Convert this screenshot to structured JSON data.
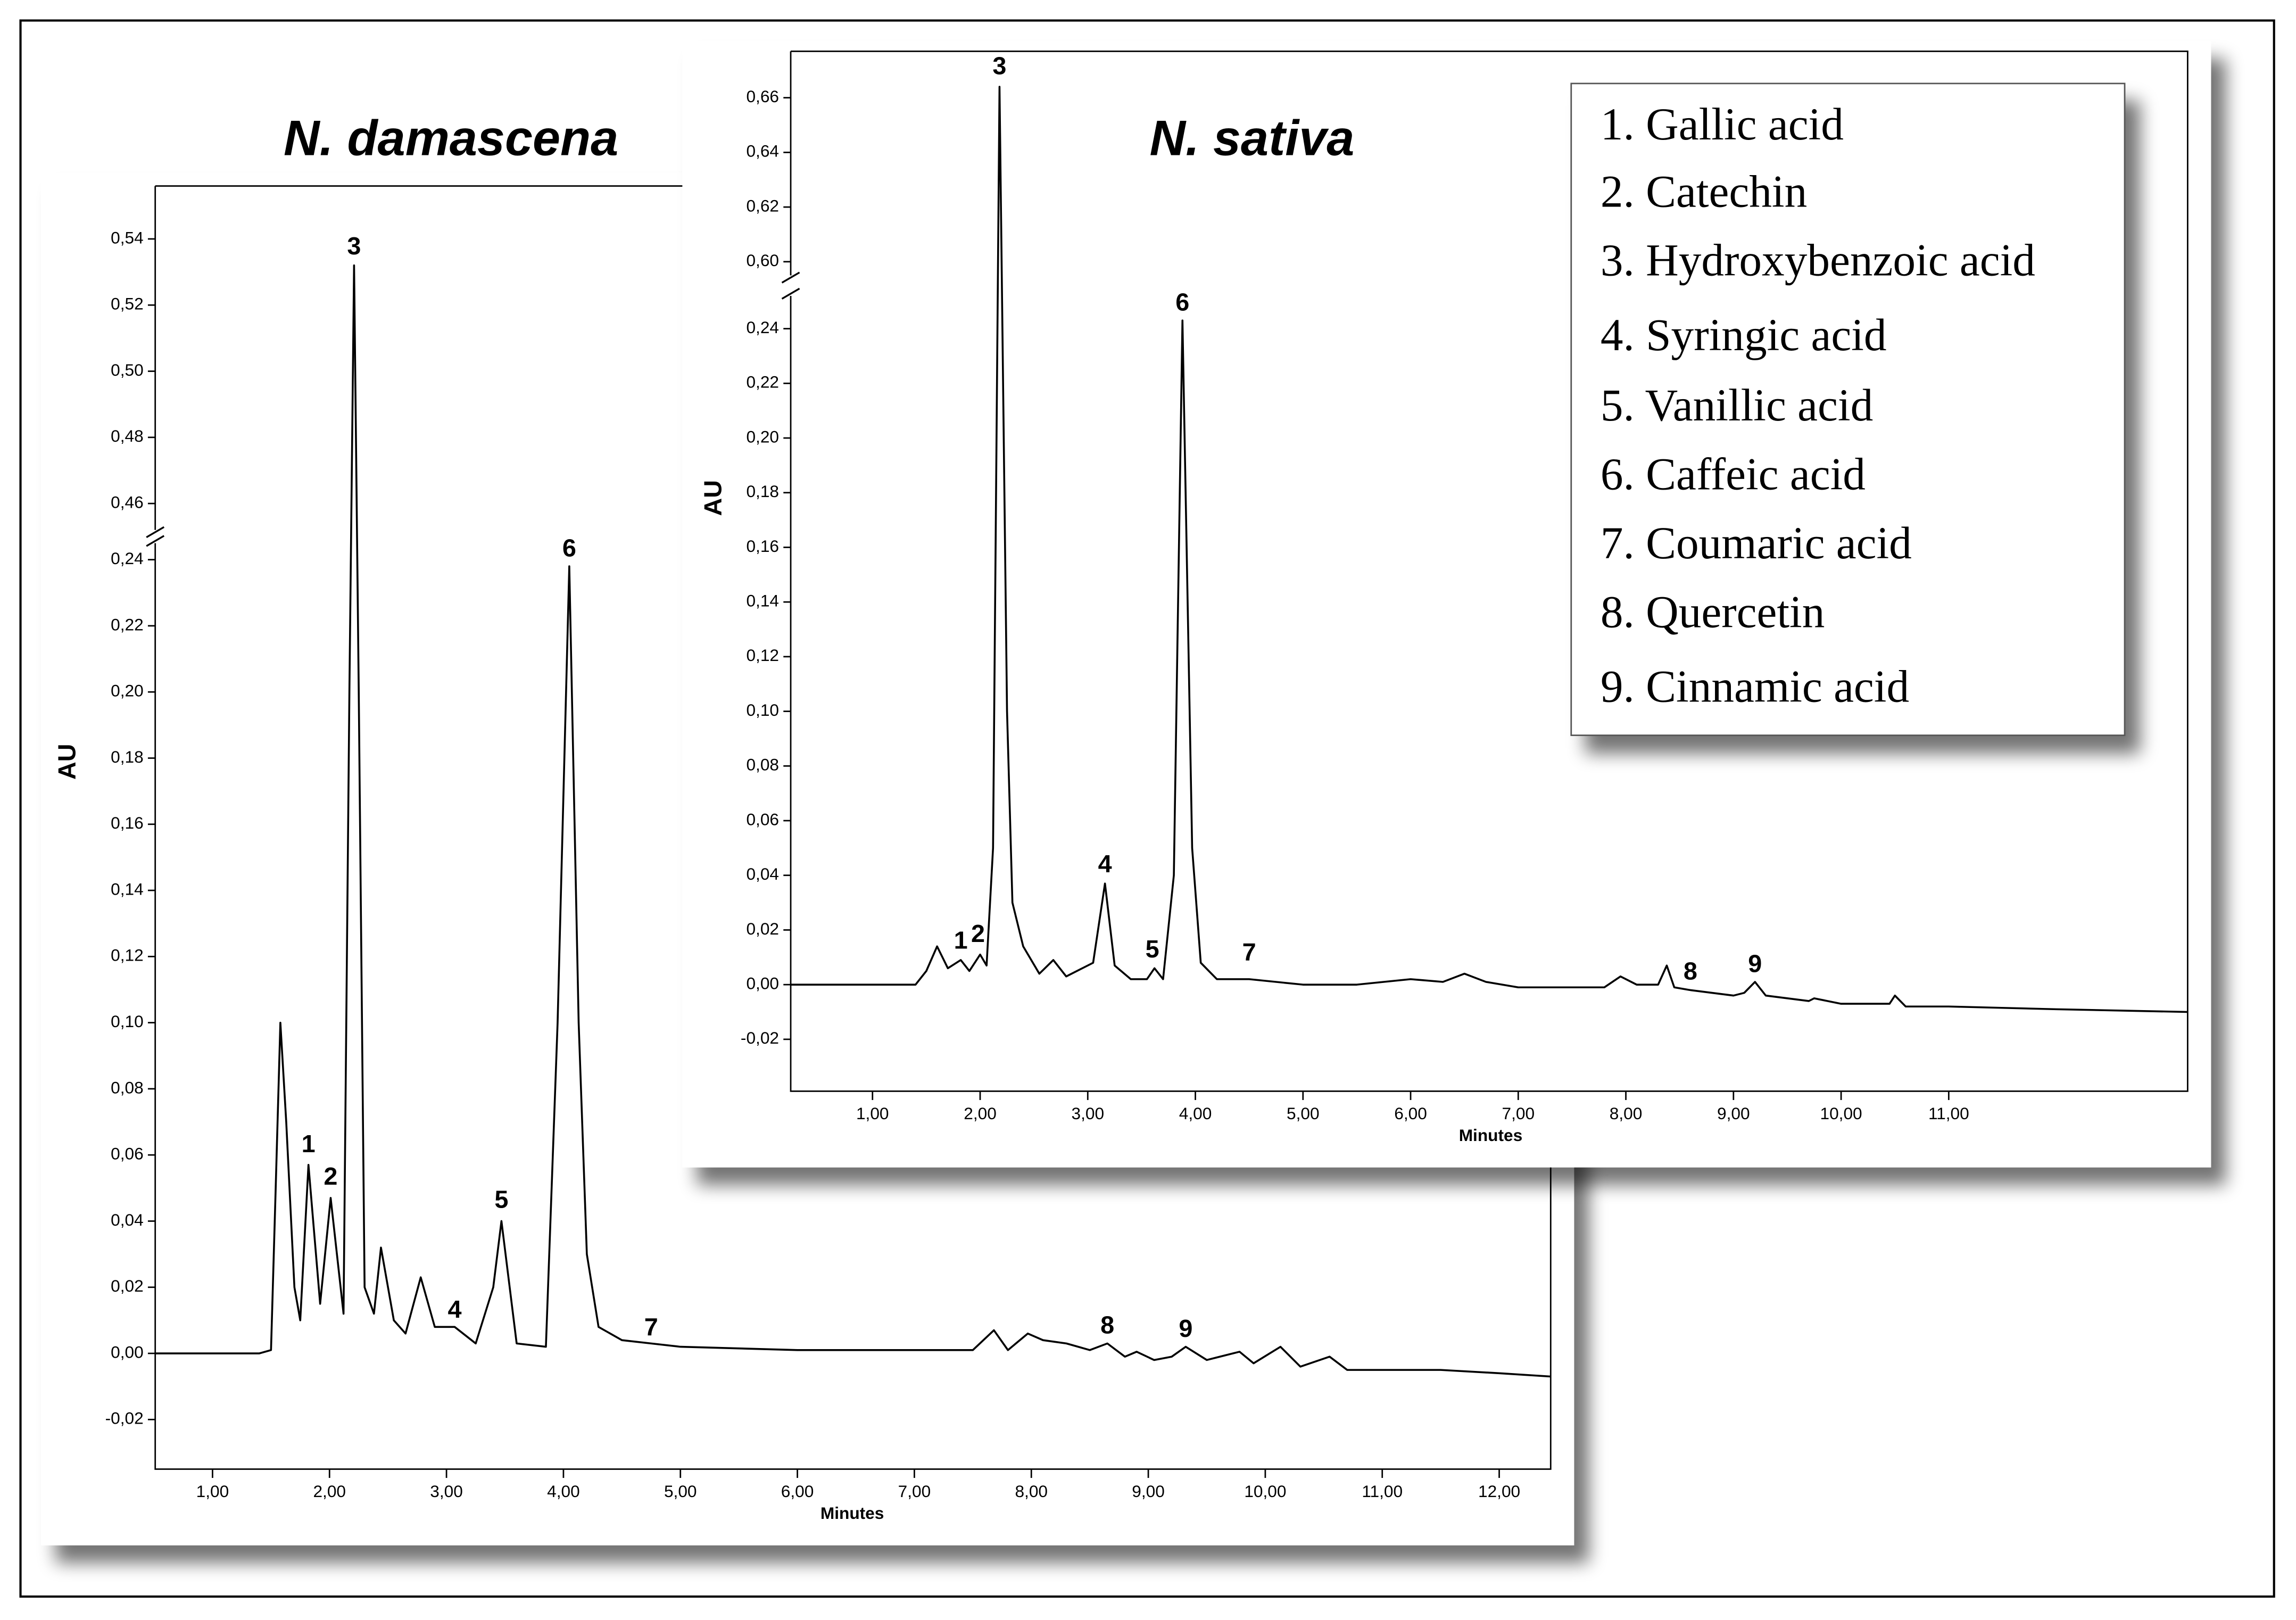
{
  "chart_data": [
    {
      "type": "line",
      "title": "N. damascena",
      "ylabel": "AU",
      "xlabel": "Minutes",
      "color": "#000000",
      "xlim": [
        0.51,
        12.44
      ],
      "ylim": [
        -0.035,
        0.556
      ],
      "y_break": [
        0.245,
        0.452
      ],
      "xticks": [
        {
          "value": 1,
          "label": "1,00"
        },
        {
          "value": 2,
          "label": "2,00"
        },
        {
          "value": 3,
          "label": "3,00"
        },
        {
          "value": 4,
          "label": "4,00"
        },
        {
          "value": 5,
          "label": "5,00"
        },
        {
          "value": 6,
          "label": "6,00"
        },
        {
          "value": 7,
          "label": "7,00"
        },
        {
          "value": 8,
          "label": "8,00"
        },
        {
          "value": 9,
          "label": "9,00"
        },
        {
          "value": 10,
          "label": "10,00"
        },
        {
          "value": 11,
          "label": "11,00"
        },
        {
          "value": 12,
          "label": "12,00"
        }
      ],
      "yticks": [
        {
          "value": -0.02,
          "label": "-0,02"
        },
        {
          "value": 0,
          "label": "0,00"
        },
        {
          "value": 0.02,
          "label": "0,02"
        },
        {
          "value": 0.04,
          "label": "0,04"
        },
        {
          "value": 0.06,
          "label": "0,06"
        },
        {
          "value": 0.08,
          "label": "0,08"
        },
        {
          "value": 0.1,
          "label": "0,10"
        },
        {
          "value": 0.12,
          "label": "0,12"
        },
        {
          "value": 0.14,
          "label": "0,14"
        },
        {
          "value": 0.16,
          "label": "0,16"
        },
        {
          "value": 0.18,
          "label": "0,18"
        },
        {
          "value": 0.2,
          "label": "0,20"
        },
        {
          "value": 0.22,
          "label": "0,22"
        },
        {
          "value": 0.24,
          "label": "0,24"
        },
        {
          "value": 0.46,
          "label": "0,46"
        },
        {
          "value": 0.48,
          "label": "0,48"
        },
        {
          "value": 0.5,
          "label": "0,50"
        },
        {
          "value": 0.52,
          "label": "0,52"
        },
        {
          "value": 0.54,
          "label": "0,54"
        }
      ],
      "x": [
        0.51,
        1.4,
        1.5,
        1.54,
        1.58,
        1.63,
        1.7,
        1.75,
        1.82,
        1.92,
        2.01,
        2.12,
        2.17,
        2.21,
        2.25,
        2.3,
        2.38,
        2.44,
        2.55,
        2.65,
        2.78,
        2.9,
        3.07,
        3.25,
        3.4,
        3.47,
        3.6,
        3.85,
        3.95,
        4.05,
        4.13,
        4.2,
        4.3,
        4.5,
        4.75,
        5.0,
        6.0,
        7.0,
        7.5,
        7.68,
        7.8,
        7.97,
        8.1,
        8.3,
        8.5,
        8.65,
        8.8,
        8.9,
        9.05,
        9.2,
        9.32,
        9.5,
        9.78,
        9.9,
        10.13,
        10.3,
        10.55,
        10.7,
        11.0,
        11.5,
        12.0,
        12.44
      ],
      "values": [
        0,
        0,
        0.001,
        0.05,
        0.1,
        0.07,
        0.02,
        0.01,
        0.057,
        0.015,
        0.047,
        0.012,
        0.2,
        0.532,
        0.2,
        0.02,
        0.012,
        0.032,
        0.01,
        0.006,
        0.023,
        0.008,
        0.008,
        0.003,
        0.02,
        0.04,
        0.003,
        0.002,
        0.1,
        0.238,
        0.1,
        0.03,
        0.008,
        0.004,
        0.003,
        0.002,
        0.001,
        0.001,
        0.001,
        0.007,
        0.001,
        0.006,
        0.004,
        0.003,
        0.001,
        0.003,
        -0.001,
        0.0005,
        -0.002,
        -0.001,
        0.002,
        -0.002,
        0.0005,
        -0.003,
        0.002,
        -0.004,
        -0.001,
        -0.005,
        -0.005,
        -0.005,
        -0.006,
        -0.007
      ],
      "annotations": [
        {
          "text": "1",
          "x": 1.82,
          "y": 0.0628
        },
        {
          "text": "2",
          "x": 2.01,
          "y": 0.053
        },
        {
          "text": "3",
          "x": 2.21,
          "y": 0.5373
        },
        {
          "text": "4",
          "x": 3.07,
          "y": 0.0128
        },
        {
          "text": "5",
          "x": 3.47,
          "y": 0.046
        },
        {
          "text": "6",
          "x": 4.05,
          "y": 0.243
        },
        {
          "text": "7",
          "x": 4.75,
          "y": 0.0075
        },
        {
          "text": "8",
          "x": 8.65,
          "y": 0.008
        },
        {
          "text": "9",
          "x": 9.32,
          "y": 0.007
        }
      ]
    },
    {
      "type": "line",
      "title": "N. sativa",
      "ylabel": "AU",
      "xlabel": "Minutes",
      "color": "#000000",
      "xlim": [
        0.24,
        13.22
      ],
      "ylim": [
        -0.039,
        0.677
      ],
      "y_break": [
        0.252,
        0.595
      ],
      "xticks": [
        {
          "value": 1,
          "label": "1,00"
        },
        {
          "value": 2,
          "label": "2,00"
        },
        {
          "value": 3,
          "label": "3,00"
        },
        {
          "value": 4,
          "label": "4,00"
        },
        {
          "value": 5,
          "label": "5,00"
        },
        {
          "value": 6,
          "label": "6,00"
        },
        {
          "value": 7,
          "label": "7,00"
        },
        {
          "value": 8,
          "label": "8,00"
        },
        {
          "value": 9,
          "label": "9,00"
        },
        {
          "value": 10,
          "label": "10,00"
        },
        {
          "value": 11,
          "label": "11,00"
        }
      ],
      "yticks": [
        {
          "value": -0.02,
          "label": "-0,02"
        },
        {
          "value": 0,
          "label": "0,00"
        },
        {
          "value": 0.02,
          "label": "0,02"
        },
        {
          "value": 0.04,
          "label": "0,04"
        },
        {
          "value": 0.06,
          "label": "0,06"
        },
        {
          "value": 0.08,
          "label": "0,08"
        },
        {
          "value": 0.1,
          "label": "0,10"
        },
        {
          "value": 0.12,
          "label": "0,12"
        },
        {
          "value": 0.14,
          "label": "0,14"
        },
        {
          "value": 0.16,
          "label": "0,16"
        },
        {
          "value": 0.18,
          "label": "0,18"
        },
        {
          "value": 0.2,
          "label": "0,20"
        },
        {
          "value": 0.22,
          "label": "0,22"
        },
        {
          "value": 0.24,
          "label": "0,24"
        },
        {
          "value": 0.6,
          "label": "0,60"
        },
        {
          "value": 0.62,
          "label": "0,62"
        },
        {
          "value": 0.64,
          "label": "0,64"
        },
        {
          "value": 0.66,
          "label": "0,66"
        }
      ],
      "x": [
        0.24,
        1.4,
        1.5,
        1.6,
        1.7,
        1.82,
        1.9,
        2.0,
        2.06,
        2.12,
        2.18,
        2.25,
        2.3,
        2.4,
        2.55,
        2.68,
        2.8,
        2.95,
        3.05,
        3.16,
        3.25,
        3.4,
        3.55,
        3.62,
        3.7,
        3.8,
        3.88,
        3.97,
        4.05,
        4.2,
        4.5,
        5.0,
        5.5,
        6.0,
        6.3,
        6.5,
        6.7,
        7.0,
        7.5,
        7.8,
        7.95,
        8.1,
        8.3,
        8.38,
        8.45,
        8.6,
        9.0,
        9.1,
        9.2,
        9.3,
        9.7,
        9.75,
        10.0,
        10.45,
        10.5,
        10.6,
        11.0,
        12.0,
        13.22
      ],
      "values": [
        0,
        0,
        0.005,
        0.014,
        0.006,
        0.009,
        0.005,
        0.011,
        0.007,
        0.05,
        0.664,
        0.1,
        0.03,
        0.014,
        0.004,
        0.009,
        0.003,
        0.006,
        0.008,
        0.037,
        0.007,
        0.002,
        0.002,
        0.006,
        0.002,
        0.04,
        0.243,
        0.05,
        0.008,
        0.002,
        0.002,
        0,
        0,
        0.002,
        0.001,
        0.004,
        0.001,
        -0.001,
        -0.001,
        -0.001,
        0.003,
        0,
        0,
        0.007,
        -0.001,
        -0.002,
        -0.004,
        -0.003,
        0.001,
        -0.004,
        -0.006,
        -0.005,
        -0.007,
        -0.007,
        -0.004,
        -0.008,
        -0.008,
        -0.009,
        -0.01
      ],
      "annotations": [
        {
          "text": "1",
          "x": 1.82,
          "y": 0.0156
        },
        {
          "text": "2",
          "x": 1.98,
          "y": 0.018
        },
        {
          "text": "3",
          "x": 2.18,
          "y": 0.671
        },
        {
          "text": "4",
          "x": 3.16,
          "y": 0.0435
        },
        {
          "text": "5",
          "x": 3.6,
          "y": 0.0124
        },
        {
          "text": "6",
          "x": 3.88,
          "y": 0.249
        },
        {
          "text": "7",
          "x": 4.5,
          "y": 0.0113
        },
        {
          "text": "8",
          "x": 8.6,
          "y": 0.0043
        },
        {
          "text": "9",
          "x": 9.2,
          "y": 0.007
        }
      ]
    }
  ],
  "legend_box": [
    "1. Gallic acid",
    "2. Catechin",
    "3. Hydroxybenzoic acid",
    "4. Syringic acid",
    "5. Vanillic acid",
    "6. Caffeic acid",
    "7. Coumaric acid",
    "8. Quercetin",
    "9. Cinnamic acid"
  ]
}
